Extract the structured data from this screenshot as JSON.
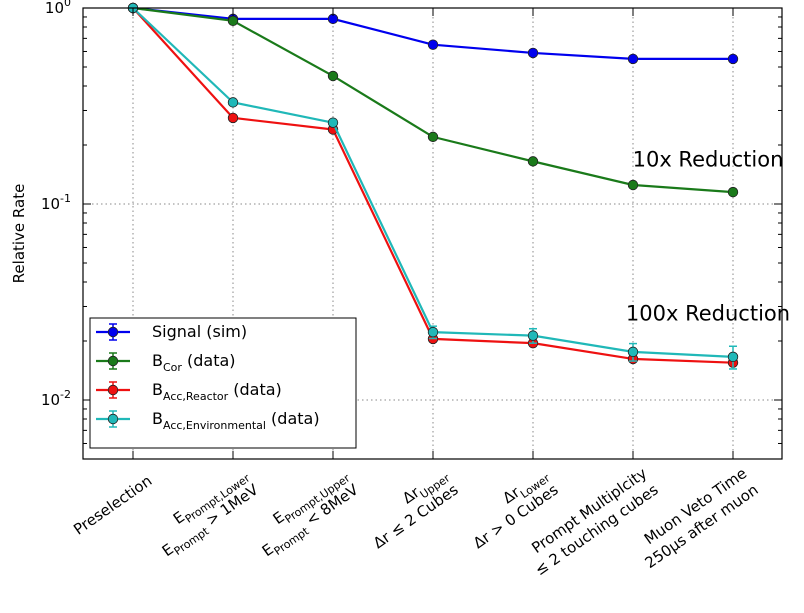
{
  "chart_data": {
    "type": "line",
    "title": "",
    "xlabel": "",
    "ylabel": "Relative Rate",
    "yscale": "log",
    "ylim": [
      0.005,
      1.0
    ],
    "grid": true,
    "legend_position": "lower-left",
    "categories": [
      {
        "main": "Preselection",
        "color": "#000000"
      },
      {
        "line1": "E_Prompt,Lower",
        "line2": "E_Prompt > 1MeV",
        "color": "#000000"
      },
      {
        "line1": "E_Prompt,Upper",
        "line2": "E_Prompt < 8MeV",
        "color": "#000000"
      },
      {
        "line1": "Δr_Upper",
        "line2": "Δr ≤ 2 Cubes",
        "color": "#2222dd"
      },
      {
        "line1": "Δr_Lower",
        "line2": "Δr > 0 Cubes",
        "color": "#2222dd"
      },
      {
        "line1": "Prompt Multiplcity",
        "line2": "≤ 2 touching cubes",
        "color": "#2222dd"
      },
      {
        "line1": "Muon Veto Time",
        "line2": "250μs after muon",
        "color": "#000000"
      }
    ],
    "yticks": [
      {
        "base": "10",
        "exp": "0",
        "value": 1.0
      },
      {
        "base": "10",
        "exp": "-1",
        "value": 0.1
      },
      {
        "base": "10",
        "exp": "-2",
        "value": 0.01
      }
    ],
    "series": [
      {
        "name": "Signal (sim)",
        "color": "#0000ee",
        "values": [
          1.0,
          0.88,
          0.88,
          0.65,
          0.59,
          0.55,
          0.55
        ],
        "errors": [
          0,
          0,
          0,
          0,
          0,
          0,
          0
        ]
      },
      {
        "name": "B_Cor (data)",
        "color": "#1a7a1a",
        "values": [
          1.0,
          0.86,
          0.45,
          0.22,
          0.165,
          0.125,
          0.115
        ],
        "errors": [
          0,
          0,
          0,
          0,
          0,
          0,
          0
        ]
      },
      {
        "name": "B_Acc,Reactor (data)",
        "color": "#ee1111",
        "values": [
          1.0,
          0.275,
          0.24,
          0.0205,
          0.0195,
          0.0162,
          0.0155
        ],
        "errors": [
          0,
          0,
          0,
          0,
          0,
          0,
          0
        ]
      },
      {
        "name": "B_Acc,Environmental (data)",
        "color": "#20b8b8",
        "values": [
          1.0,
          0.33,
          0.26,
          0.0222,
          0.0213,
          0.0176,
          0.0166
        ],
        "errors": [
          0,
          0,
          0,
          0.0016,
          0.0018,
          0.0018,
          0.0022
        ]
      }
    ],
    "legend": [
      {
        "base": "Signal (sim)",
        "sub": "",
        "suffix": "",
        "color": "#0000ee"
      },
      {
        "base": "B",
        "sub": "Cor",
        "suffix": " (data)",
        "color": "#1a7a1a"
      },
      {
        "base": "B",
        "sub": "Acc,Reactor",
        "suffix": " (data)",
        "color": "#ee1111"
      },
      {
        "base": "B",
        "sub": "Acc,Environmental",
        "suffix": " (data)",
        "color": "#20b8b8"
      }
    ],
    "annotations": [
      {
        "text": "10x Reduction",
        "x_index": 5.75,
        "y": 0.155
      },
      {
        "text": "100x Reduction",
        "x_index": 5.75,
        "y": 0.0255
      }
    ]
  }
}
